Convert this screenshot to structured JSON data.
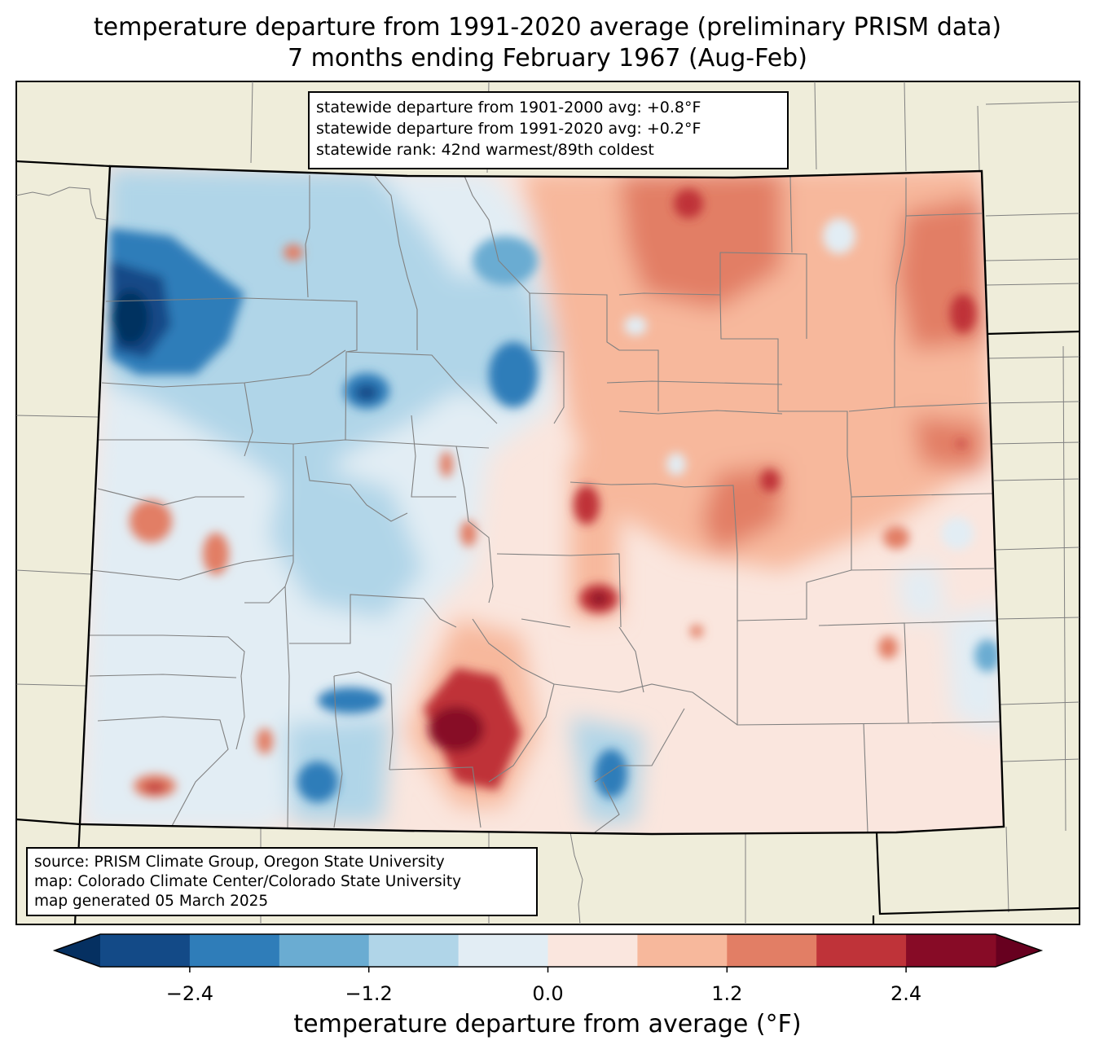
{
  "title": {
    "line1": "temperature departure from 1991-2020 average (preliminary PRISM data)",
    "line2": "7 months ending February 1967 (Aug-Feb)"
  },
  "stats": {
    "line1": "statewide departure from 1901-2000 avg: +0.8°F",
    "line2": "statewide departure from 1991-2020 avg: +0.2°F",
    "line3": "statewide rank: 42nd warmest/89th coldest"
  },
  "credits": {
    "line1": "source: PRISM Climate Group, Oregon State University",
    "line2": "map: Colorado Climate Center/Colorado State University",
    "line3": "map generated 05 March 2025"
  },
  "colorbar": {
    "label": "temperature departure from average (°F)",
    "ticks": [
      "−2.4",
      "−1.2",
      "0.0",
      "1.2",
      "2.4"
    ],
    "tick_values": [
      -2.4,
      -1.2,
      0.0,
      1.2,
      2.4
    ],
    "bounds": [
      -3.0,
      3.0
    ],
    "under_color": "#053061",
    "over_color": "#67001f",
    "colors": [
      "#134a87",
      "#2f7db9",
      "#6aacd2",
      "#b0d5e8",
      "#e2edf4",
      "#fae6de",
      "#f7b89c",
      "#e27e65",
      "#bf3339",
      "#870b26"
    ]
  },
  "colors": {
    "land": "#efedda",
    "state_border": "#000000",
    "county_border": "#808080"
  }
}
